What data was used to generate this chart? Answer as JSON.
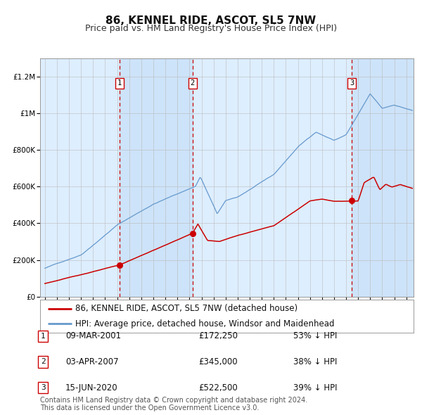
{
  "title": "86, KENNEL RIDE, ASCOT, SL5 7NW",
  "subtitle": "Price paid vs. HM Land Registry's House Price Index (HPI)",
  "background_color": "#ffffff",
  "plot_bg_color": "#ddeeff",
  "grid_color": "#bbbbbb",
  "hpi_line_color": "#6699cc",
  "price_line_color": "#cc0000",
  "sale_dot_color": "#cc0000",
  "dashed_line_color": "#cc0000",
  "title_fontsize": 11,
  "subtitle_fontsize": 9,
  "tick_fontsize": 7.5,
  "legend_fontsize": 8.5,
  "table_fontsize": 8.5,
  "footer_fontsize": 7,
  "sales": [
    {
      "num": 1,
      "date": "09-MAR-2001",
      "price": 172250,
      "pct": "53%",
      "direction": "↓",
      "x_year": 2001.19
    },
    {
      "num": 2,
      "date": "03-APR-2007",
      "price": 345000,
      "pct": "38%",
      "direction": "↓",
      "x_year": 2007.26
    },
    {
      "num": 3,
      "date": "15-JUN-2020",
      "price": 522500,
      "pct": "39%",
      "direction": "↓",
      "x_year": 2020.46
    }
  ],
  "legend_entries": [
    "86, KENNEL RIDE, ASCOT, SL5 7NW (detached house)",
    "HPI: Average price, detached house, Windsor and Maidenhead"
  ],
  "footer_line1": "Contains HM Land Registry data © Crown copyright and database right 2024.",
  "footer_line2": "This data is licensed under the Open Government Licence v3.0.",
  "ylim": [
    0,
    1300000
  ],
  "xlim_start": 1994.6,
  "xlim_end": 2025.6,
  "yticks": [
    0,
    200000,
    400000,
    600000,
    800000,
    1000000,
    1200000
  ],
  "ytick_labels": [
    "£0",
    "£200K",
    "£400K",
    "£600K",
    "£800K",
    "£1M",
    "£1.2M"
  ]
}
